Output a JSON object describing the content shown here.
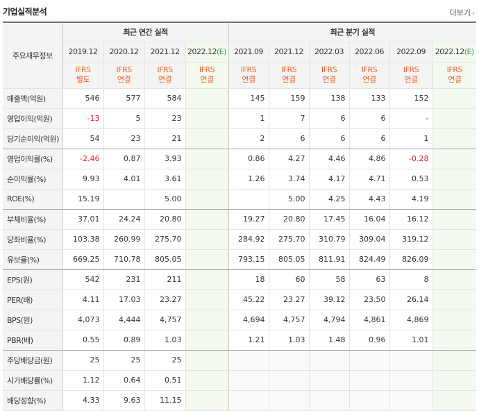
{
  "title": "기업실적분석",
  "more_label": "더보기",
  "header": {
    "row_label": "주요재무정보",
    "annual_group": "최근 연간 실적",
    "quarter_group": "최근 분기 실적",
    "annual_periods": [
      "2019.12",
      "2020.12",
      "2021.12",
      "2022.12"
    ],
    "annual_estimate_tag": "(E)",
    "quarter_periods": [
      "2021.09",
      "2021.12",
      "2022.03",
      "2022.06",
      "2022.09",
      "2022.12"
    ],
    "quarter_estimate_tag": "(E)",
    "ifrs": "IFRS",
    "annual_standards": [
      "별도",
      "연결",
      "연결",
      "연결"
    ],
    "quarter_standards": [
      "연결",
      "연결",
      "연결",
      "연결",
      "연결",
      "연결"
    ]
  },
  "rows": [
    {
      "label": "매출액(억원)",
      "annual": [
        "546",
        "577",
        "584",
        ""
      ],
      "quarter": [
        "145",
        "159",
        "138",
        "133",
        "152",
        ""
      ]
    },
    {
      "label": "영업이익(억원)",
      "annual": [
        "-13",
        "5",
        "23",
        ""
      ],
      "quarter": [
        "1",
        "7",
        "6",
        "6",
        "-",
        ""
      ]
    },
    {
      "label": "당기순이익(억원)",
      "annual": [
        "54",
        "23",
        "21",
        ""
      ],
      "quarter": [
        "2",
        "6",
        "6",
        "6",
        "1",
        ""
      ]
    },
    {
      "label": "영업이익률(%)",
      "annual": [
        "-2.46",
        "0.87",
        "3.93",
        ""
      ],
      "quarter": [
        "0.86",
        "4.27",
        "4.46",
        "4.86",
        "-0.28",
        ""
      ]
    },
    {
      "label": "순이익률(%)",
      "annual": [
        "9.93",
        "4.01",
        "3.61",
        ""
      ],
      "quarter": [
        "1.26",
        "3.74",
        "4.17",
        "4.71",
        "0.53",
        ""
      ]
    },
    {
      "label": "ROE(%)",
      "annual": [
        "15.19",
        "",
        "5.00",
        ""
      ],
      "quarter": [
        "",
        "5.00",
        "4.25",
        "4.43",
        "4.19",
        ""
      ]
    },
    {
      "label": "부채비율(%)",
      "annual": [
        "37.01",
        "24.24",
        "20.80",
        ""
      ],
      "quarter": [
        "19.27",
        "20.80",
        "17.45",
        "16.04",
        "16.12",
        ""
      ]
    },
    {
      "label": "당좌비율(%)",
      "annual": [
        "103.38",
        "260.99",
        "275.70",
        ""
      ],
      "quarter": [
        "284.92",
        "275.70",
        "310.79",
        "309.04",
        "319.12",
        ""
      ]
    },
    {
      "label": "유보율(%)",
      "annual": [
        "669.25",
        "710.78",
        "805.05",
        ""
      ],
      "quarter": [
        "793.15",
        "805.05",
        "811.91",
        "824.49",
        "826.09",
        ""
      ]
    },
    {
      "label": "EPS(원)",
      "annual": [
        "542",
        "231",
        "211",
        ""
      ],
      "quarter": [
        "18",
        "60",
        "58",
        "63",
        "8",
        ""
      ]
    },
    {
      "label": "PER(배)",
      "annual": [
        "4.11",
        "17.03",
        "23.27",
        ""
      ],
      "quarter": [
        "45.22",
        "23.27",
        "39.12",
        "23.50",
        "26.14",
        ""
      ]
    },
    {
      "label": "BPS(원)",
      "annual": [
        "4,073",
        "4,444",
        "4,757",
        ""
      ],
      "quarter": [
        "4,694",
        "4,757",
        "4,794",
        "4,861",
        "4,869",
        ""
      ]
    },
    {
      "label": "PBR(배)",
      "annual": [
        "0.55",
        "0.89",
        "1.03",
        ""
      ],
      "quarter": [
        "1.21",
        "1.03",
        "1.48",
        "0.96",
        "1.01",
        ""
      ]
    },
    {
      "label": "주당배당금(원)",
      "annual": [
        "25",
        "25",
        "25",
        ""
      ],
      "quarter": [
        "",
        "",
        "",
        "",
        "",
        ""
      ]
    },
    {
      "label": "시가배당률(%)",
      "annual": [
        "1.12",
        "0.64",
        "0.51",
        ""
      ],
      "quarter": [
        "",
        "",
        "",
        "",
        "",
        ""
      ]
    },
    {
      "label": "배당성향(%)",
      "annual": [
        "4.33",
        "9.63",
        "11.15",
        ""
      ],
      "quarter": [
        "",
        "",
        "",
        "",
        "",
        ""
      ]
    }
  ],
  "colors": {
    "negative": "#e01e1e",
    "ifrs": "#e8622c",
    "estimate_tag": "#2f9a44",
    "estimate_bg": "#f5faf1",
    "header_bg": "#f4f4f4"
  }
}
